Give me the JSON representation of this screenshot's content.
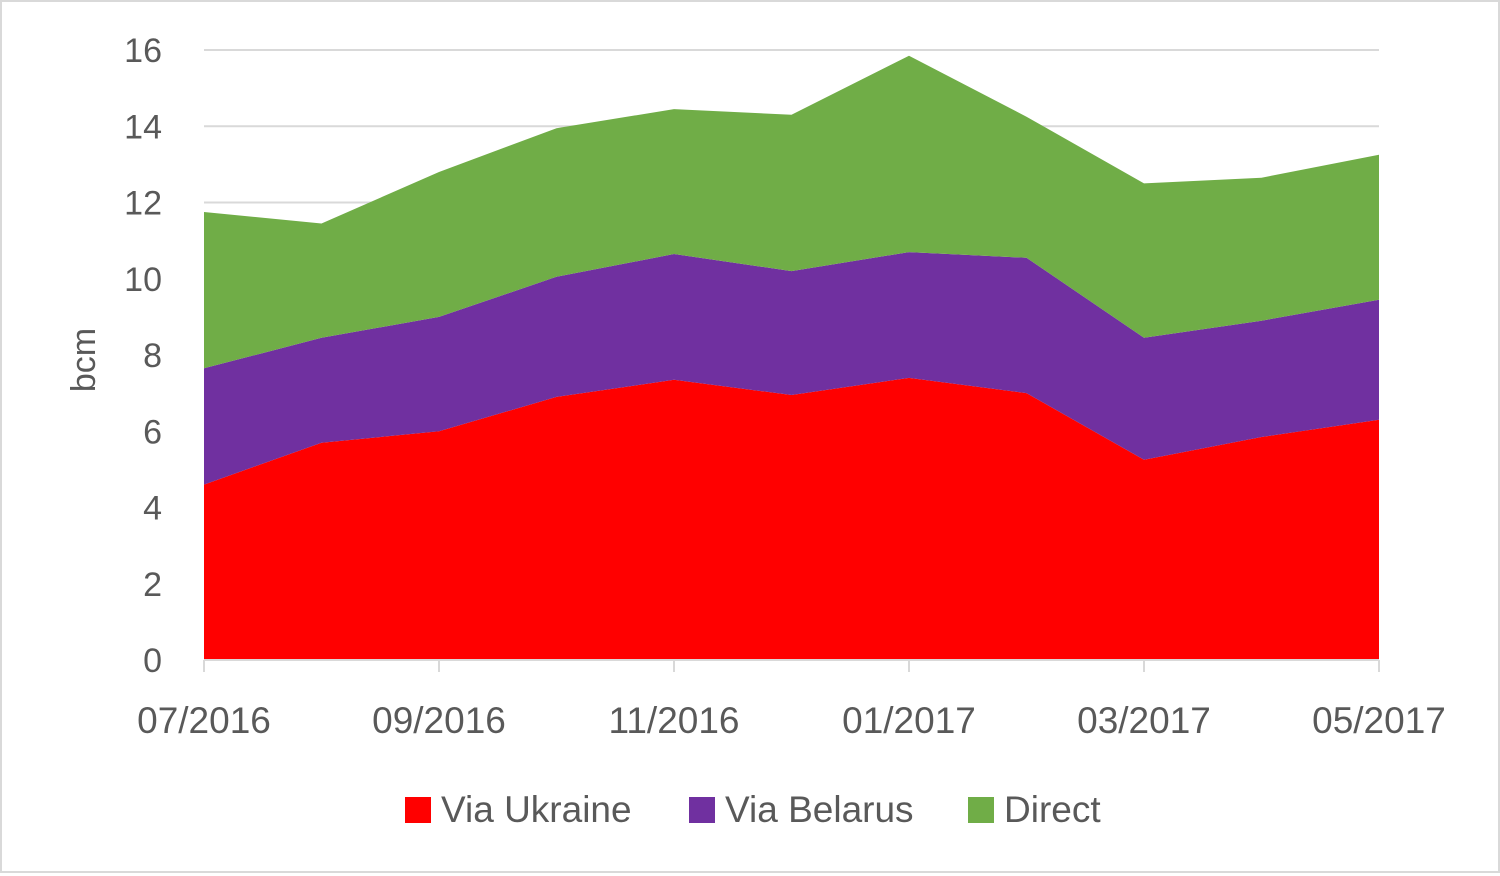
{
  "chart_data": {
    "type": "area",
    "stacked": true,
    "x": [
      "07/2016",
      "08/2016",
      "09/2016",
      "10/2016",
      "11/2016",
      "12/2016",
      "01/2017",
      "02/2017",
      "03/2017",
      "04/2017",
      "05/2017"
    ],
    "x_tick_labels": [
      "07/2016",
      "09/2016",
      "11/2016",
      "01/2017",
      "03/2017",
      "05/2017"
    ],
    "ylabel": "bcm",
    "xlabel": "",
    "ylim": [
      0,
      16
    ],
    "y_ticks": [
      0,
      2,
      4,
      6,
      8,
      10,
      12,
      14,
      16
    ],
    "grid": "horizontal",
    "legend_position": "bottom",
    "series": [
      {
        "name": "Via Ukraine",
        "color": "#ff0000",
        "values": [
          4.6,
          5.7,
          6.0,
          6.9,
          7.35,
          6.95,
          7.4,
          7.0,
          5.25,
          5.85,
          6.3
        ]
      },
      {
        "name": "Via Belarus",
        "color": "#7030a0",
        "values": [
          3.05,
          2.75,
          3.0,
          3.15,
          3.3,
          3.25,
          3.3,
          3.55,
          3.2,
          3.05,
          3.15
        ]
      },
      {
        "name": "Direct",
        "color": "#70ad47",
        "values": [
          4.1,
          3.0,
          3.8,
          3.9,
          3.8,
          4.1,
          5.15,
          3.7,
          4.05,
          3.75,
          3.8
        ]
      }
    ]
  }
}
